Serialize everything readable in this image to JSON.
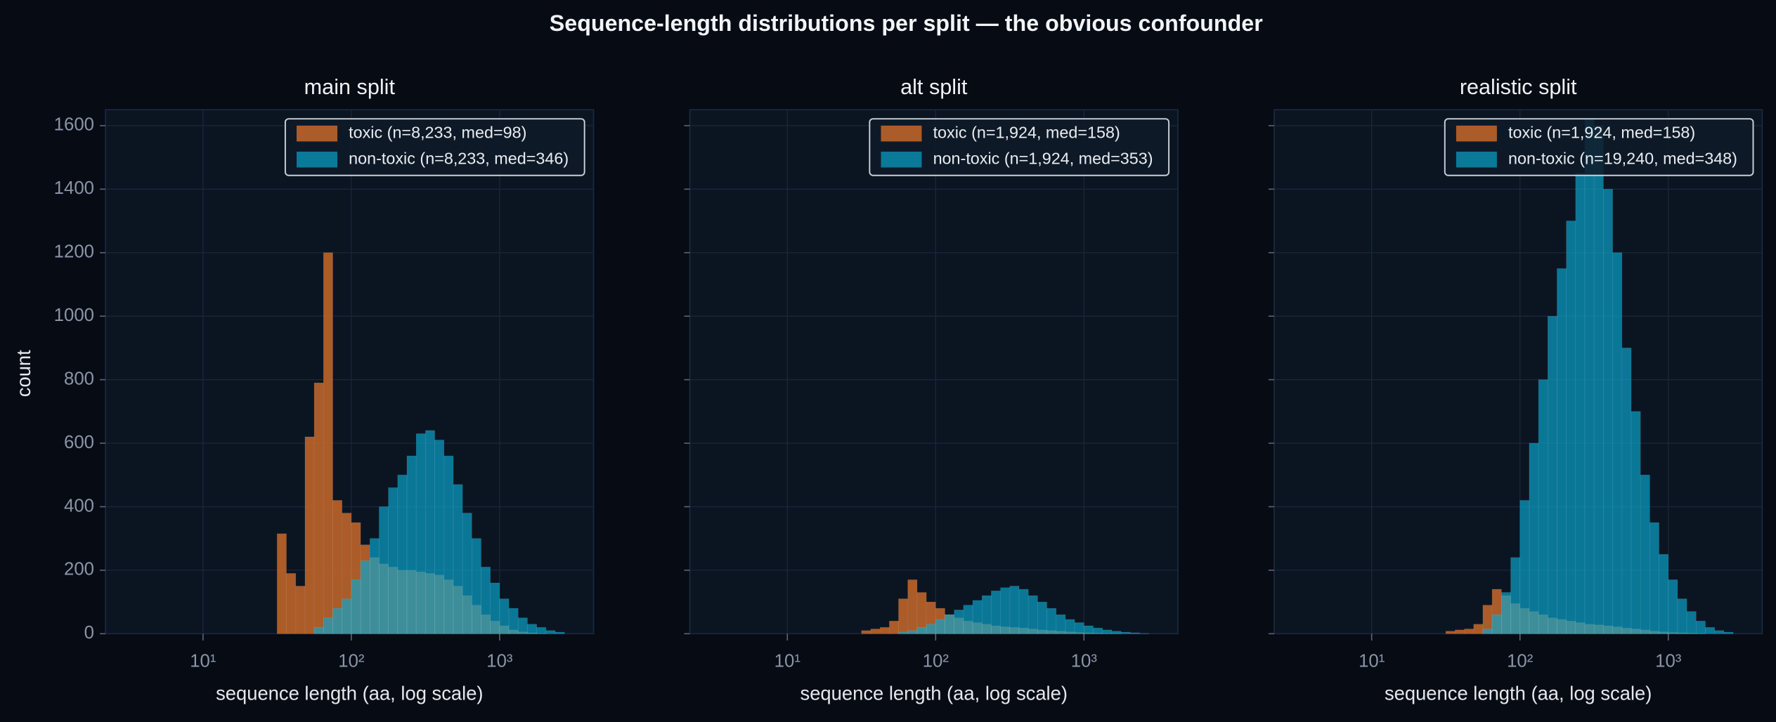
{
  "title": "Sequence-length distributions per split — the obvious confounder",
  "chart_data": [
    {
      "type": "histogram",
      "title": "main split",
      "xlabel": "sequence length (aa, log scale)",
      "ylabel": "count",
      "log_x": true,
      "grid": true,
      "legend": "upper right",
      "show_ytick_labels": true,
      "xlim": [
        2.2,
        4300
      ],
      "ylim": [
        0,
        1650
      ],
      "xticks": [
        {
          "value": 10,
          "label": "10¹"
        },
        {
          "value": 100,
          "label": "10²"
        },
        {
          "value": 1000,
          "label": "10³"
        }
      ],
      "yticks": [
        0,
        200,
        400,
        600,
        800,
        1000,
        1200,
        1400,
        1600
      ],
      "bins": [
        31.6,
        36.5,
        42.2,
        48.7,
        56.2,
        64.9,
        75.0,
        86.6,
        100,
        115.5,
        133.4,
        154.0,
        177.8,
        205.4,
        237.1,
        273.8,
        316.2,
        365.2,
        421.7,
        487.0,
        562.3,
        649.4,
        749.9,
        865.9,
        1000,
        1154.8,
        1333.5,
        1539.9,
        1778.3,
        2053.5,
        2371.4,
        2738.4,
        3162.3
      ],
      "series": [
        {
          "name": "toxic (n=8,233, med=98)",
          "color": "#c8692a",
          "values": [
            315,
            190,
            150,
            620,
            790,
            1200,
            420,
            380,
            350,
            280,
            240,
            220,
            210,
            200,
            200,
            195,
            190,
            185,
            170,
            150,
            120,
            90,
            60,
            40,
            25,
            12,
            6,
            3,
            1,
            0,
            0,
            0
          ]
        },
        {
          "name": "non-toxic (n=8,233, med=346)",
          "color": "#0aa6cf",
          "values": [
            0,
            0,
            0,
            0,
            20,
            50,
            80,
            110,
            170,
            230,
            300,
            400,
            460,
            500,
            560,
            630,
            640,
            610,
            560,
            470,
            380,
            300,
            210,
            160,
            110,
            80,
            50,
            30,
            20,
            10,
            5,
            0
          ]
        }
      ]
    },
    {
      "type": "histogram",
      "title": "alt split",
      "xlabel": "sequence length (aa, log scale)",
      "log_x": true,
      "grid": true,
      "legend": "upper right",
      "show_ytick_labels": false,
      "xlim": [
        2.2,
        4300
      ],
      "ylim": [
        0,
        1650
      ],
      "xticks": [
        {
          "value": 10,
          "label": "10¹"
        },
        {
          "value": 100,
          "label": "10²"
        },
        {
          "value": 1000,
          "label": "10³"
        }
      ],
      "yticks": [
        0,
        200,
        400,
        600,
        800,
        1000,
        1200,
        1400,
        1600
      ],
      "bins": [
        31.6,
        36.5,
        42.2,
        48.7,
        56.2,
        64.9,
        75.0,
        86.6,
        100,
        115.5,
        133.4,
        154.0,
        177.8,
        205.4,
        237.1,
        273.8,
        316.2,
        365.2,
        421.7,
        487.0,
        562.3,
        649.4,
        749.9,
        865.9,
        1000,
        1154.8,
        1333.5,
        1539.9,
        1778.3,
        2053.5,
        2371.4,
        2738.4,
        3162.3
      ],
      "series": [
        {
          "name": "toxic (n=1,924, med=158)",
          "color": "#c8692a",
          "values": [
            10,
            15,
            20,
            40,
            110,
            170,
            130,
            100,
            80,
            60,
            50,
            40,
            35,
            30,
            25,
            22,
            20,
            18,
            15,
            12,
            10,
            8,
            6,
            4,
            3,
            2,
            1,
            1,
            0,
            0,
            0,
            0
          ]
        },
        {
          "name": "non-toxic (n=1,924, med=353)",
          "color": "#0aa6cf",
          "values": [
            0,
            0,
            0,
            0,
            5,
            10,
            20,
            30,
            45,
            60,
            75,
            90,
            105,
            120,
            135,
            145,
            150,
            140,
            120,
            100,
            80,
            60,
            45,
            35,
            25,
            18,
            12,
            8,
            5,
            3,
            1,
            0
          ]
        }
      ]
    },
    {
      "type": "histogram",
      "title": "realistic split",
      "xlabel": "sequence length (aa, log scale)",
      "log_x": true,
      "grid": true,
      "legend": "upper right",
      "show_ytick_labels": false,
      "xlim": [
        2.2,
        4300
      ],
      "ylim": [
        0,
        1650
      ],
      "xticks": [
        {
          "value": 10,
          "label": "10¹"
        },
        {
          "value": 100,
          "label": "10²"
        },
        {
          "value": 1000,
          "label": "10³"
        }
      ],
      "yticks": [
        0,
        200,
        400,
        600,
        800,
        1000,
        1200,
        1400,
        1600
      ],
      "bins": [
        31.6,
        36.5,
        42.2,
        48.7,
        56.2,
        64.9,
        75.0,
        86.6,
        100,
        115.5,
        133.4,
        154.0,
        177.8,
        205.4,
        237.1,
        273.8,
        316.2,
        365.2,
        421.7,
        487.0,
        562.3,
        649.4,
        749.9,
        865.9,
        1000,
        1154.8,
        1333.5,
        1539.9,
        1778.3,
        2053.5,
        2371.4,
        2738.4,
        3162.3
      ],
      "series": [
        {
          "name": "toxic (n=1,924, med=158)",
          "color": "#c8692a",
          "values": [
            8,
            12,
            15,
            30,
            90,
            140,
            120,
            95,
            80,
            70,
            60,
            50,
            45,
            40,
            35,
            30,
            28,
            25,
            22,
            18,
            15,
            12,
            8,
            6,
            4,
            3,
            2,
            1,
            0,
            0,
            0,
            0
          ]
        },
        {
          "name": "non-toxic (n=19,240, med=348)",
          "color": "#0aa6cf",
          "values": [
            0,
            0,
            0,
            0,
            15,
            60,
            130,
            240,
            420,
            600,
            800,
            1000,
            1150,
            1300,
            1450,
            1620,
            1600,
            1400,
            1200,
            900,
            700,
            500,
            350,
            250,
            170,
            110,
            70,
            40,
            20,
            10,
            5,
            0
          ]
        }
      ]
    }
  ]
}
